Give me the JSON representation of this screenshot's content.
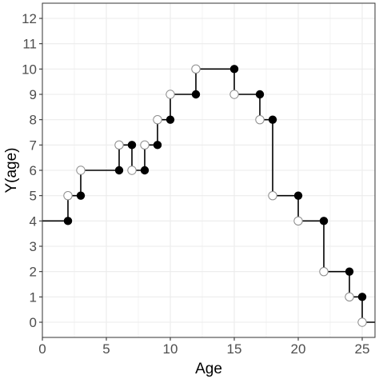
{
  "chart_data": {
    "type": "line",
    "title": "",
    "xlabel": "Age",
    "ylabel": "Y(age)",
    "xlim": [
      0,
      26
    ],
    "ylim": [
      -0.6,
      12.6
    ],
    "x_ticks": [
      "0",
      "5",
      "10",
      "15",
      "20",
      "25"
    ],
    "y_ticks": [
      "0",
      "1",
      "2",
      "3",
      "4",
      "5",
      "6",
      "7",
      "8",
      "9",
      "10",
      "11",
      "12"
    ],
    "grid": true,
    "legend": "none",
    "colors": {
      "line": "#000000",
      "filled_point": "#000000",
      "open_point": "#ffffff",
      "open_point_stroke": "#8c8c8c",
      "grid": "#ebebeb",
      "panel_border": "#333333"
    },
    "series": [
      {
        "style": "step",
        "x": [
          0,
          2,
          2,
          3,
          3,
          6,
          6,
          7,
          7,
          8,
          8,
          9,
          9,
          10,
          10,
          12,
          12,
          15,
          15,
          17,
          17,
          18,
          18,
          20,
          20,
          22,
          22,
          24,
          24,
          25,
          25,
          26
        ],
        "y": [
          4,
          4,
          5,
          5,
          6,
          6,
          7,
          7,
          6,
          6,
          7,
          7,
          8,
          8,
          9,
          9,
          10,
          10,
          9,
          9,
          8,
          8,
          5,
          5,
          4,
          4,
          2,
          2,
          1,
          1,
          0,
          0
        ]
      }
    ],
    "filled_points": [
      {
        "x": 2,
        "y": 4
      },
      {
        "x": 3,
        "y": 5
      },
      {
        "x": 6,
        "y": 6
      },
      {
        "x": 7,
        "y": 7
      },
      {
        "x": 8,
        "y": 6
      },
      {
        "x": 9,
        "y": 7
      },
      {
        "x": 10,
        "y": 8
      },
      {
        "x": 12,
        "y": 9
      },
      {
        "x": 15,
        "y": 10
      },
      {
        "x": 17,
        "y": 9
      },
      {
        "x": 18,
        "y": 8
      },
      {
        "x": 20,
        "y": 5
      },
      {
        "x": 22,
        "y": 4
      },
      {
        "x": 24,
        "y": 2
      },
      {
        "x": 25,
        "y": 1
      }
    ],
    "open_points": [
      {
        "x": 2,
        "y": 5
      },
      {
        "x": 3,
        "y": 6
      },
      {
        "x": 6,
        "y": 7
      },
      {
        "x": 7,
        "y": 6
      },
      {
        "x": 8,
        "y": 7
      },
      {
        "x": 9,
        "y": 8
      },
      {
        "x": 10,
        "y": 9
      },
      {
        "x": 12,
        "y": 10
      },
      {
        "x": 15,
        "y": 9
      },
      {
        "x": 17,
        "y": 8
      },
      {
        "x": 18,
        "y": 5
      },
      {
        "x": 20,
        "y": 4
      },
      {
        "x": 22,
        "y": 2
      },
      {
        "x": 24,
        "y": 1
      },
      {
        "x": 25,
        "y": 0
      }
    ]
  }
}
